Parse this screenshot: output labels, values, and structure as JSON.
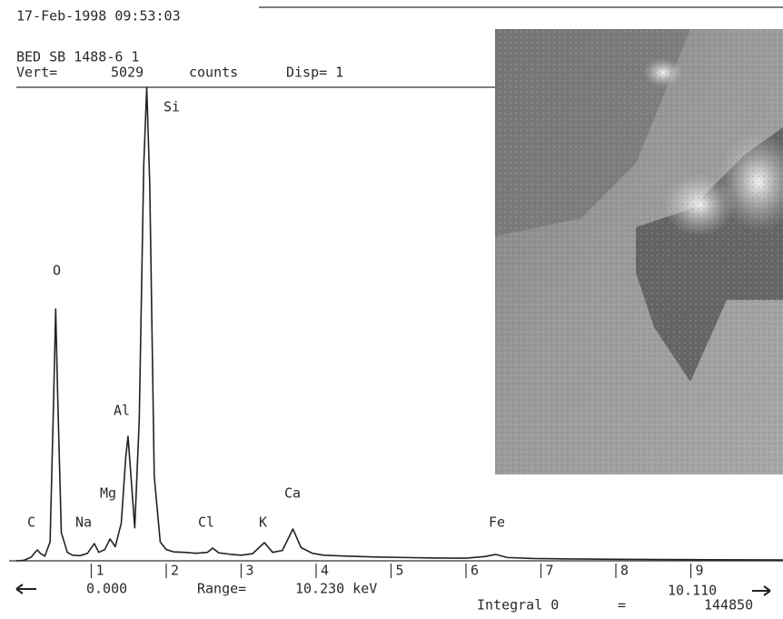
{
  "chart_data": {
    "type": "line",
    "timestamp": "17-Feb-1998 09:53:03",
    "sample": "BED SB 1488-6 1",
    "vert_label": "Vert=",
    "vert_unit": "counts",
    "disp": "Disp= 1",
    "color": "#222222",
    "xlim": [
      0,
      10.23
    ],
    "ylim": [
      0,
      5029
    ],
    "xticks": [
      1,
      2,
      3,
      4,
      5,
      6,
      7,
      8,
      9
    ],
    "x": [
      0.0,
      0.1,
      0.2,
      0.25,
      0.28,
      0.32,
      0.38,
      0.45,
      0.5,
      0.525,
      0.55,
      0.6,
      0.68,
      0.75,
      0.85,
      0.95,
      1.04,
      1.1,
      1.18,
      1.25,
      1.32,
      1.4,
      1.46,
      1.49,
      1.52,
      1.58,
      1.64,
      1.7,
      1.74,
      1.78,
      1.84,
      1.92,
      2.0,
      2.1,
      2.25,
      2.4,
      2.55,
      2.62,
      2.7,
      2.85,
      3.0,
      3.15,
      3.31,
      3.42,
      3.55,
      3.69,
      3.8,
      3.95,
      4.1,
      4.4,
      4.8,
      5.2,
      5.6,
      6.0,
      6.25,
      6.4,
      6.55,
      6.9,
      7.4,
      8.0,
      8.6,
      9.2,
      9.8,
      10.23
    ],
    "values": [
      0,
      5,
      40,
      90,
      116,
      80,
      50,
      200,
      1800,
      2674,
      1800,
      300,
      90,
      60,
      55,
      80,
      183,
      90,
      120,
      232,
      150,
      400,
      1100,
      1322,
      1000,
      350,
      1500,
      4200,
      5029,
      4000,
      900,
      200,
      120,
      95,
      90,
      80,
      90,
      135,
      85,
      70,
      60,
      75,
      193,
      90,
      110,
      338,
      140,
      80,
      60,
      50,
      40,
      35,
      30,
      28,
      45,
      68,
      35,
      25,
      20,
      16,
      14,
      12,
      10,
      9
    ],
    "peak_labels": [
      "C",
      "O",
      "Na",
      "Mg",
      "Al",
      "Si",
      "Cl",
      "K",
      "Ca",
      "Fe"
    ],
    "cursor_left": "0.000",
    "range_label": "Range=",
    "range_value": "10.230 keV",
    "cursor_right": "10.110",
    "integral_label": "Integral 0",
    "integral_equals": "=",
    "integral_value": "144850"
  }
}
